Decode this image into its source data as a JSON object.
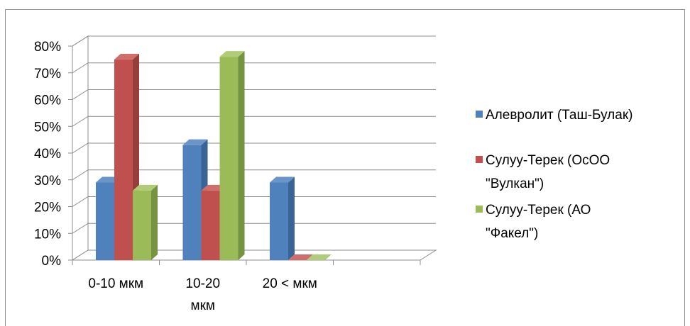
{
  "chart_data": {
    "type": "bar",
    "categories": [
      [
        "0-10 мкм"
      ],
      [
        "10-20",
        "мкм"
      ],
      [
        "20 < мкм"
      ]
    ],
    "series": [
      {
        "name": [
          "Алевролит (Таш-Булак)"
        ],
        "values": [
          29,
          43,
          29
        ],
        "color": "#4f81bd",
        "top": "#6a95c8",
        "side": "#3a6496"
      },
      {
        "name": [
          "Сулуу-Терек (ОсОО",
          "\"Вулкан\")"
        ],
        "values": [
          75,
          26,
          0
        ],
        "color": "#c0504d",
        "top": "#cf6f6c",
        "side": "#963e3b"
      },
      {
        "name": [
          "Сулуу-Терек (АО",
          "\"Факел\")"
        ],
        "values": [
          26,
          76,
          0
        ],
        "color": "#9bbb59",
        "top": "#b0cc77",
        "side": "#769243"
      }
    ],
    "y_ticks": [
      "0%",
      "10%",
      "20%",
      "30%",
      "40%",
      "50%",
      "60%",
      "70%",
      "80%"
    ],
    "ylim": [
      0,
      80
    ],
    "grid": true,
    "legend_position": "right",
    "style": "3d-clustered-column"
  }
}
